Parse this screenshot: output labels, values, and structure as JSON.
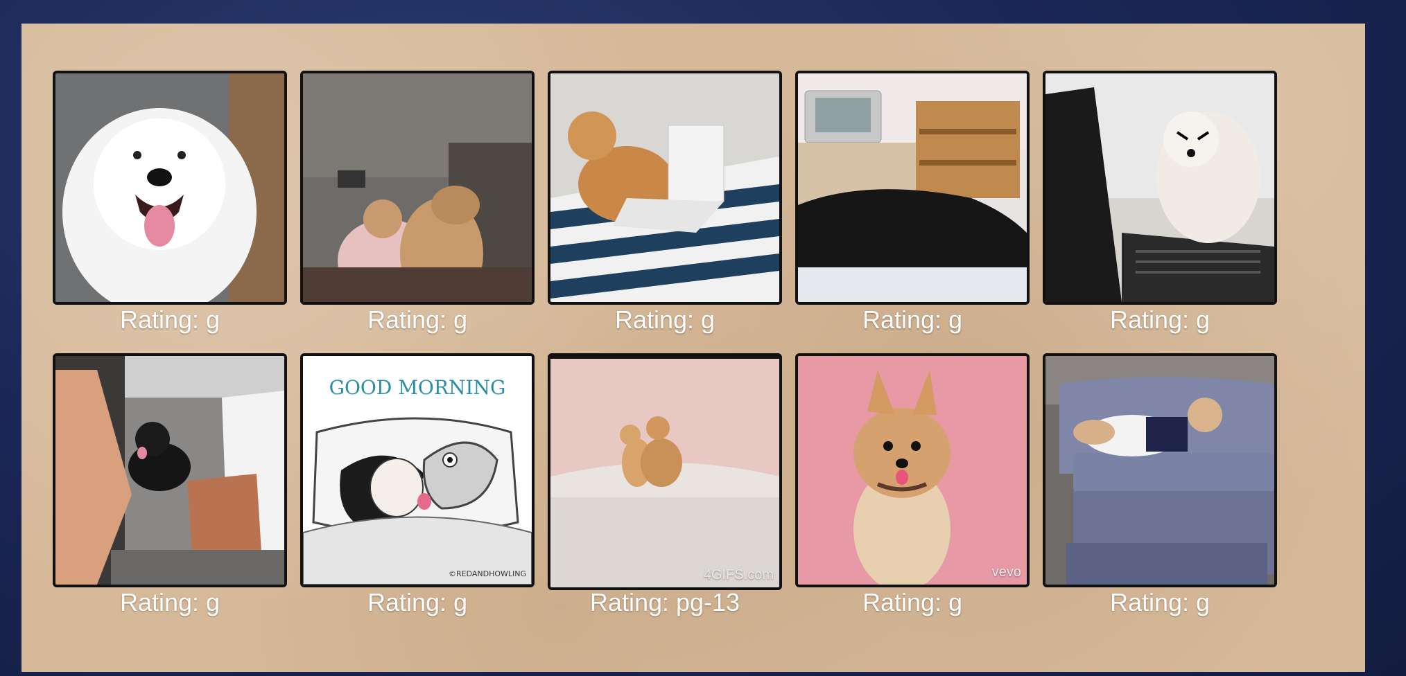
{
  "gifs": [
    {
      "rating_label": "Rating: g",
      "depicts": "white-fluffy-dog-smiling"
    },
    {
      "rating_label": "Rating: g",
      "depicts": "dog-on-couch-with-woman"
    },
    {
      "rating_label": "Rating: g",
      "depicts": "shiba-typing-on-laptop"
    },
    {
      "rating_label": "Rating: g",
      "depicts": "black-dog-in-bedroom"
    },
    {
      "rating_label": "Rating: g",
      "depicts": "pomeranian-angry-at-laptop"
    },
    {
      "rating_label": "Rating: g",
      "depicts": "small-black-dog-under-table"
    },
    {
      "rating_label": "Rating: g",
      "depicts": "good-morning-cartoon",
      "text": "GOOD MORNING",
      "signature": "©REDANDHOWLING"
    },
    {
      "rating_label": "Rating: pg-13",
      "depicts": "two-chihuahuas",
      "watermark": "4GIFS.com"
    },
    {
      "rating_label": "Rating: g",
      "depicts": "pomeranian-pink-background",
      "watermark": "vevo"
    },
    {
      "rating_label": "Rating: g",
      "depicts": "french-bulldog-on-sofa"
    }
  ],
  "colors": {
    "page_background": "#1b2757",
    "panel": "#d6b999",
    "caption_text": "#ffffff",
    "frame_border": "#111111"
  }
}
